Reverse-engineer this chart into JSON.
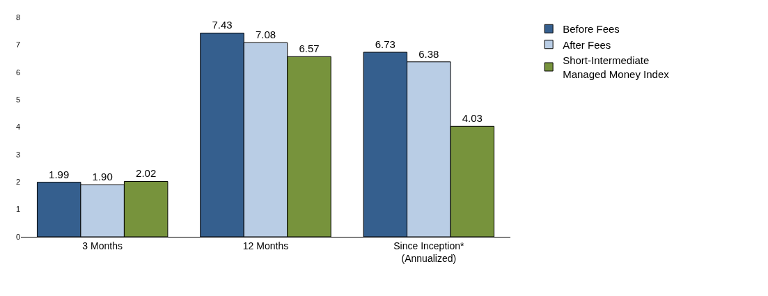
{
  "chart_data": {
    "type": "bar",
    "categories": [
      "3 Months",
      "12 Months",
      "Since Inception*\n(Annualized)"
    ],
    "series": [
      {
        "name": "Before Fees",
        "color": "#355f8e",
        "values": [
          1.99,
          7.43,
          6.73
        ],
        "value_labels": [
          "1.99",
          "7.43",
          "6.73"
        ]
      },
      {
        "name": "After Fees",
        "color": "#b9cde5",
        "values": [
          1.9,
          7.08,
          6.38
        ],
        "value_labels": [
          "1.90",
          "7.08",
          "6.38"
        ]
      },
      {
        "name": "Short-Intermediate\nManaged Money Index",
        "color": "#77933c",
        "values": [
          2.02,
          6.57,
          4.03
        ],
        "value_labels": [
          "2.02",
          "6.57",
          "4.03"
        ]
      }
    ],
    "ylim": [
      0,
      8
    ],
    "yticks": [
      0,
      1,
      2,
      3,
      4,
      5,
      6,
      7,
      8
    ],
    "legend": "top right"
  }
}
